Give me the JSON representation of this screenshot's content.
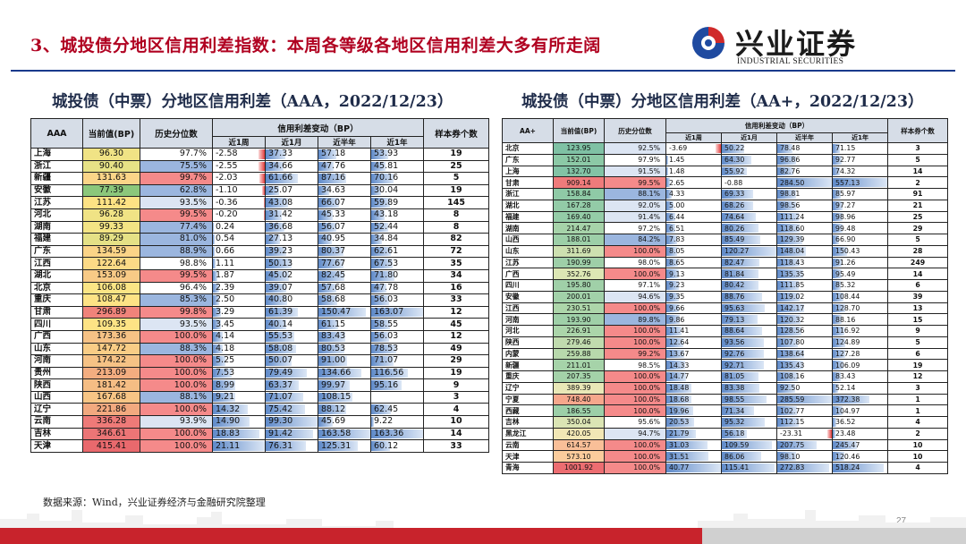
{
  "header": {
    "title": "3、城投债分地区信用利差指数：本周各等级各地区信用利差大多有所走阔",
    "brand_name": "兴业证券",
    "brand_en": "INDUSTRIAL SECURITIES"
  },
  "tables": [
    {
      "title": "城投债（中票）分地区信用利差（AAA，2022/12/23）",
      "columns": {
        "rating": "AAA",
        "current": "当前值(BP)",
        "percentile": "历史分位数",
        "change_group": "信用利差变动（BP）",
        "count": "样本券个数",
        "w1": "近1周",
        "m1": "近1月",
        "h1": "近半年",
        "y1": "近1年"
      },
      "rows": [
        {
          "region": "上海",
          "current": "96.30",
          "pct": "97.7%",
          "w1": "-2.58",
          "m1": "37.33",
          "h1": "57.18",
          "y1": "53.93",
          "count": "19",
          "cc": "#f0e385"
        },
        {
          "region": "浙江",
          "current": "90.40",
          "pct": "75.5%",
          "w1": "-2.55",
          "m1": "34.66",
          "h1": "47.76",
          "y1": "45.81",
          "count": "25",
          "cc": "#e7e286"
        },
        {
          "region": "新疆",
          "current": "131.63",
          "pct": "99.7%",
          "w1": "-2.03",
          "m1": "61.66",
          "h1": "87.16",
          "y1": "70.16",
          "count": "5",
          "cc": "#fbd588"
        },
        {
          "region": "安徽",
          "current": "77.39",
          "pct": "62.8%",
          "w1": "-1.10",
          "m1": "25.07",
          "h1": "34.63",
          "y1": "30.04",
          "count": "19",
          "cc": "#8cc77b"
        },
        {
          "region": "江苏",
          "current": "111.42",
          "pct": "93.5%",
          "w1": "-0.36",
          "m1": "43.08",
          "h1": "66.07",
          "y1": "59.89",
          "count": "145",
          "cc": "#fde284"
        },
        {
          "region": "河北",
          "current": "96.28",
          "pct": "99.5%",
          "w1": "-0.20",
          "m1": "31.42",
          "h1": "45.33",
          "y1": "43.18",
          "count": "8",
          "cc": "#f0e385"
        },
        {
          "region": "湖南",
          "current": "99.33",
          "pct": "77.4%",
          "w1": "0.24",
          "m1": "36.68",
          "h1": "56.07",
          "y1": "52.44",
          "count": "8",
          "cc": "#f3e484"
        },
        {
          "region": "福建",
          "current": "89.29",
          "pct": "81.0%",
          "w1": "0.54",
          "m1": "27.13",
          "h1": "40.95",
          "y1": "34.84",
          "count": "82",
          "cc": "#e5e186"
        },
        {
          "region": "广东",
          "current": "134.59",
          "pct": "88.9%",
          "w1": "0.66",
          "m1": "39.23",
          "h1": "80.37",
          "y1": "62.61",
          "count": "72",
          "cc": "#fbd487"
        },
        {
          "region": "江西",
          "current": "122.64",
          "pct": "98.8%",
          "w1": "1.11",
          "m1": "50.13",
          "h1": "77.67",
          "y1": "67.53",
          "count": "35",
          "cc": "#fcda86"
        },
        {
          "region": "湖北",
          "current": "153.09",
          "pct": "99.5%",
          "w1": "1.87",
          "m1": "45.02",
          "h1": "82.45",
          "y1": "71.80",
          "count": "34",
          "cc": "#f8ca86"
        },
        {
          "region": "北京",
          "current": "106.08",
          "pct": "96.4%",
          "w1": "2.39",
          "m1": "39.07",
          "h1": "57.68",
          "y1": "47.78",
          "count": "16",
          "cc": "#fbe585"
        },
        {
          "region": "重庆",
          "current": "108.47",
          "pct": "85.3%",
          "w1": "2.50",
          "m1": "40.80",
          "h1": "58.68",
          "y1": "56.03",
          "count": "33",
          "cc": "#fde385"
        },
        {
          "region": "甘肃",
          "current": "296.89",
          "pct": "99.8%",
          "w1": "3.29",
          "m1": "61.39",
          "h1": "150.47",
          "y1": "163.07",
          "count": "12",
          "cc": "#f0837a"
        },
        {
          "region": "四川",
          "current": "109.35",
          "pct": "93.5%",
          "w1": "3.45",
          "m1": "40.14",
          "h1": "61.15",
          "y1": "58.55",
          "count": "45",
          "cc": "#fde385"
        },
        {
          "region": "广西",
          "current": "173.36",
          "pct": "100.0%",
          "w1": "4.14",
          "m1": "55.53",
          "h1": "83.43",
          "y1": "56.03",
          "count": "12",
          "cc": "#f6c285"
        },
        {
          "region": "山东",
          "current": "147.72",
          "pct": "88.3%",
          "w1": "4.18",
          "m1": "58.08",
          "h1": "80.53",
          "y1": "78.53",
          "count": "49",
          "cc": "#f9cd86"
        },
        {
          "region": "河南",
          "current": "174.22",
          "pct": "100.0%",
          "w1": "5.25",
          "m1": "50.07",
          "h1": "91.00",
          "y1": "71.07",
          "count": "29",
          "cc": "#f6c285"
        },
        {
          "region": "贵州",
          "current": "213.09",
          "pct": "100.0%",
          "w1": "7.53",
          "m1": "79.49",
          "h1": "134.66",
          "y1": "116.56",
          "count": "19",
          "cc": "#f3ad80"
        },
        {
          "region": "陕西",
          "current": "181.42",
          "pct": "100.0%",
          "w1": "8.99",
          "m1": "63.37",
          "h1": "99.97",
          "y1": "95.16",
          "count": "9",
          "cc": "#f5bd84"
        },
        {
          "region": "山西",
          "current": "167.68",
          "pct": "88.1%",
          "w1": "9.21",
          "m1": "71.07",
          "h1": "108.15",
          "y1": "",
          "count": "3",
          "cc": "#f7c585"
        },
        {
          "region": "辽宁",
          "current": "221.86",
          "pct": "100.0%",
          "w1": "14.32",
          "m1": "75.42",
          "h1": "88.12",
          "y1": "62.45",
          "count": "4",
          "cc": "#f2a97f"
        },
        {
          "region": "云南",
          "current": "336.28",
          "pct": "93.9%",
          "w1": "14.90",
          "m1": "99.30",
          "h1": "45.69",
          "y1": "9.22",
          "count": "10",
          "cc": "#ee7a78"
        },
        {
          "region": "吉林",
          "current": "346.61",
          "pct": "100.0%",
          "w1": "18.83",
          "m1": "91.42",
          "h1": "163.58",
          "y1": "163.36",
          "count": "14",
          "cc": "#ec7576"
        },
        {
          "region": "天津",
          "current": "415.41",
          "pct": "100.0%",
          "w1": "21.11",
          "m1": "76.31",
          "h1": "125.31",
          "y1": "60.12",
          "count": "33",
          "cc": "#e9696d"
        }
      ]
    },
    {
      "title": "城投债（中票）分地区信用利差（AA+，2022/12/23）",
      "columns": {
        "rating": "AA+",
        "current": "当前值(BP)",
        "percentile": "历史分位数",
        "change_group": "信用利差变动（BP）",
        "count": "样本券个数",
        "w1": "近1周",
        "m1": "近1月",
        "h1": "近半年",
        "y1": "近1年"
      },
      "rows": [
        {
          "region": "北京",
          "current": "123.95",
          "pct": "92.5%",
          "w1": "-3.69",
          "m1": "50.22",
          "h1": "78.48",
          "y1": "71.15",
          "count": "3",
          "cc": "#7fc1a4"
        },
        {
          "region": "广东",
          "current": "152.01",
          "pct": "97.9%",
          "w1": "1.45",
          "m1": "64.30",
          "h1": "96.86",
          "y1": "92.77",
          "count": "5",
          "cc": "#8cc9a6"
        },
        {
          "region": "上海",
          "current": "132.70",
          "pct": "91.5%",
          "w1": "1.48",
          "m1": "55.92",
          "h1": "82.76",
          "y1": "74.32",
          "count": "14",
          "cc": "#82c3a5"
        },
        {
          "region": "甘肃",
          "current": "909.14",
          "pct": "99.5%",
          "w1": "2.65",
          "m1": "-0.88",
          "h1": "284.50",
          "y1": "557.13",
          "count": "2",
          "cc": "#ef7b7b"
        },
        {
          "region": "浙江",
          "current": "158.84",
          "pct": "88.1%",
          "w1": "4.33",
          "m1": "69.33",
          "h1": "98.81",
          "y1": "85.97",
          "count": "91",
          "cc": "#8fcaa6"
        },
        {
          "region": "湖北",
          "current": "167.28",
          "pct": "92.0%",
          "w1": "5.00",
          "m1": "68.26",
          "h1": "98.56",
          "y1": "97.27",
          "count": "21",
          "cc": "#93cba7"
        },
        {
          "region": "福建",
          "current": "169.40",
          "pct": "91.4%",
          "w1": "6.44",
          "m1": "74.64",
          "h1": "111.24",
          "y1": "98.96",
          "count": "25",
          "cc": "#94cca7"
        },
        {
          "region": "湖南",
          "current": "214.47",
          "pct": "97.2%",
          "w1": "6.51",
          "m1": "80.26",
          "h1": "118.60",
          "y1": "99.48",
          "count": "29",
          "cc": "#a6d3a9"
        },
        {
          "region": "山西",
          "current": "188.01",
          "pct": "84.2%",
          "w1": "7.83",
          "m1": "85.49",
          "h1": "129.39",
          "y1": "66.90",
          "count": "5",
          "cc": "#9dcfa8"
        },
        {
          "region": "山东",
          "current": "311.69",
          "pct": "100.0%",
          "w1": "8.05",
          "m1": "120.27",
          "h1": "148.04",
          "y1": "150.43",
          "count": "28",
          "cc": "#cde0b0"
        },
        {
          "region": "江苏",
          "current": "190.99",
          "pct": "98.0%",
          "w1": "8.65",
          "m1": "82.47",
          "h1": "118.43",
          "y1": "91.26",
          "count": "249",
          "cc": "#9ecfa8"
        },
        {
          "region": "广西",
          "current": "352.76",
          "pct": "100.0%",
          "w1": "9.13",
          "m1": "81.84",
          "h1": "135.35",
          "y1": "95.49",
          "count": "14",
          "cc": "#dce6b4"
        },
        {
          "region": "四川",
          "current": "195.80",
          "pct": "97.1%",
          "w1": "9.23",
          "m1": "80.42",
          "h1": "111.85",
          "y1": "85.32",
          "count": "6",
          "cc": "#a0d0a8"
        },
        {
          "region": "安徽",
          "current": "200.01",
          "pct": "94.6%",
          "w1": "9.35",
          "m1": "88.76",
          "h1": "119.02",
          "y1": "108.44",
          "count": "39",
          "cc": "#a2d1a9"
        },
        {
          "region": "江西",
          "current": "230.51",
          "pct": "100.0%",
          "w1": "9.66",
          "m1": "95.63",
          "h1": "142.17",
          "y1": "128.70",
          "count": "13",
          "cc": "#add6aa"
        },
        {
          "region": "河南",
          "current": "193.90",
          "pct": "89.8%",
          "w1": "9.86",
          "m1": "79.13",
          "h1": "120.32",
          "y1": "88.16",
          "count": "15",
          "cc": "#9fd0a8"
        },
        {
          "region": "河北",
          "current": "226.91",
          "pct": "100.0%",
          "w1": "11.41",
          "m1": "88.64",
          "h1": "128.56",
          "y1": "116.92",
          "count": "9",
          "cc": "#abd5aa"
        },
        {
          "region": "陕西",
          "current": "279.46",
          "pct": "100.0%",
          "w1": "12.64",
          "m1": "93.56",
          "h1": "107.80",
          "y1": "124.89",
          "count": "5",
          "cc": "#c0dbae"
        },
        {
          "region": "内蒙",
          "current": "259.88",
          "pct": "99.2%",
          "w1": "13.67",
          "m1": "92.76",
          "h1": "138.64",
          "y1": "127.28",
          "count": "6",
          "cc": "#b8d9ac"
        },
        {
          "region": "新疆",
          "current": "211.01",
          "pct": "98.5%",
          "w1": "14.33",
          "m1": "92.71",
          "h1": "135.43",
          "y1": "106.09",
          "count": "19",
          "cc": "#a6d3a9"
        },
        {
          "region": "重庆",
          "current": "207.35",
          "pct": "100.0%",
          "w1": "14.77",
          "m1": "81.05",
          "h1": "108.16",
          "y1": "83.43",
          "count": "12",
          "cc": "#a4d2a9"
        },
        {
          "region": "辽宁",
          "current": "389.39",
          "pct": "100.0%",
          "w1": "18.48",
          "m1": "83.38",
          "h1": "92.50",
          "y1": "52.14",
          "count": "3",
          "cc": "#e9e8b7"
        },
        {
          "region": "宁夏",
          "current": "748.40",
          "pct": "100.0%",
          "w1": "18.68",
          "m1": "98.55",
          "h1": "285.59",
          "y1": "372.38",
          "count": "1",
          "cc": "#f6a78c"
        },
        {
          "region": "西藏",
          "current": "186.55",
          "pct": "100.0%",
          "w1": "19.96",
          "m1": "71.34",
          "h1": "102.77",
          "y1": "104.97",
          "count": "1",
          "cc": "#9ccfa8"
        },
        {
          "region": "吉林",
          "current": "350.04",
          "pct": "95.6%",
          "w1": "20.53",
          "m1": "95.32",
          "h1": "112.15",
          "y1": "36.52",
          "count": "4",
          "cc": "#dbe5b4"
        },
        {
          "region": "黑龙江",
          "current": "420.05",
          "pct": "94.7%",
          "w1": "21.79",
          "m1": "56.18",
          "h1": "-23.31",
          "y1": "23.48",
          "count": "2",
          "cc": "#f2e7b5"
        },
        {
          "region": "云南",
          "current": "614.57",
          "pct": "100.0%",
          "w1": "31.03",
          "m1": "109.59",
          "h1": "207.75",
          "y1": "245.47",
          "count": "10",
          "cc": "#f9bf98"
        },
        {
          "region": "天津",
          "current": "573.10",
          "pct": "100.0%",
          "w1": "31.51",
          "m1": "86.06",
          "h1": "98.10",
          "y1": "120.46",
          "count": "10",
          "cc": "#fbcc9c"
        },
        {
          "region": "青海",
          "current": "1001.92",
          "pct": "100.0%",
          "w1": "40.77",
          "m1": "115.41",
          "h1": "272.83",
          "y1": "518.24",
          "count": "4",
          "cc": "#ec6d71"
        }
      ]
    }
  ],
  "footer": {
    "source": "数据来源：Wind，兴业证券经济与金融研究院整理",
    "page_number": "27"
  },
  "colors": {
    "title_red": "#b00020",
    "header_fill": "#d6dde7",
    "pct_high_red": "#f58a8a",
    "pct_blue": "#9bb6df",
    "footer_red": "#c8232c"
  }
}
